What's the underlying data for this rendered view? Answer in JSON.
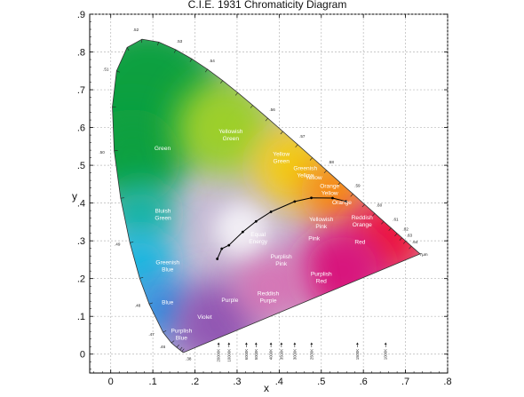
{
  "chart_data": {
    "type": "scatter",
    "title": "C.I.E. 1931 Chromaticity Diagram",
    "xlabel": "x",
    "ylabel": "y",
    "xlim": [
      -0.05,
      0.8
    ],
    "ylim": [
      -0.05,
      0.9
    ],
    "grid": true,
    "x_ticks": [
      0,
      0.1,
      0.2,
      0.3,
      0.4,
      0.5,
      0.6,
      0.7,
      0.8
    ],
    "x_tick_labels": [
      "0",
      ".1",
      ".2",
      ".3",
      ".4",
      ".5",
      ".6",
      ".7",
      ".8"
    ],
    "y_ticks": [
      0,
      0.1,
      0.2,
      0.3,
      0.4,
      0.5,
      0.6,
      0.7,
      0.8,
      0.9
    ],
    "y_tick_labels": [
      "0",
      ".1",
      ".2",
      ".3",
      ".4",
      ".5",
      ".6",
      ".7",
      ".8",
      ".9"
    ],
    "spectral_locus": {
      "x": [
        0.1741,
        0.1738,
        0.1733,
        0.1726,
        0.1714,
        0.1689,
        0.1644,
        0.1566,
        0.144,
        0.1241,
        0.0913,
        0.0687,
        0.0454,
        0.0235,
        0.0082,
        0.0039,
        0.0139,
        0.0389,
        0.0743,
        0.1142,
        0.1547,
        0.1929,
        0.2296,
        0.2658,
        0.3016,
        0.3373,
        0.3731,
        0.4087,
        0.4441,
        0.4788,
        0.5125,
        0.5448,
        0.5752,
        0.6029,
        0.627,
        0.6482,
        0.6658,
        0.6801,
        0.6915,
        0.7006,
        0.714,
        0.7347
      ],
      "y": [
        0.005,
        0.005,
        0.0048,
        0.0048,
        0.0051,
        0.0069,
        0.0109,
        0.0177,
        0.0297,
        0.0578,
        0.1327,
        0.2007,
        0.295,
        0.4127,
        0.5384,
        0.6548,
        0.7502,
        0.812,
        0.8338,
        0.8262,
        0.8059,
        0.7816,
        0.7543,
        0.7243,
        0.6923,
        0.6589,
        0.6245,
        0.5896,
        0.5547,
        0.5202,
        0.4866,
        0.4544,
        0.4242,
        0.3965,
        0.3725,
        0.3514,
        0.334,
        0.3197,
        0.3083,
        0.2993,
        0.2859,
        0.2653
      ]
    },
    "wavelength_labels": [
      {
        "label": ".38",
        "x": 0.1741,
        "y": 0.005,
        "dx": 5,
        "dy": 9
      },
      {
        "label": ".46",
        "x": 0.144,
        "y": 0.0297,
        "dx": -10,
        "dy": 6
      },
      {
        "label": ".47",
        "x": 0.1241,
        "y": 0.0578,
        "dx": -13,
        "dy": 4
      },
      {
        "label": ".48",
        "x": 0.0913,
        "y": 0.1327,
        "dx": -13,
        "dy": 3
      },
      {
        "label": ".49",
        "x": 0.0454,
        "y": 0.295,
        "dx": -14,
        "dy": 3
      },
      {
        "label": ".50",
        "x": 0.0082,
        "y": 0.5384,
        "dx": -14,
        "dy": 3
      },
      {
        "label": ".51",
        "x": 0.0139,
        "y": 0.7502,
        "dx": -12,
        "dy": 0
      },
      {
        "label": ".52",
        "x": 0.0743,
        "y": 0.8338,
        "dx": -7,
        "dy": -9
      },
      {
        "label": ".53",
        "x": 0.1547,
        "y": 0.8059,
        "dx": 4,
        "dy": -8
      },
      {
        "label": ".54",
        "x": 0.2296,
        "y": 0.7543,
        "dx": 5,
        "dy": -8
      },
      {
        "label": ".56",
        "x": 0.3731,
        "y": 0.6245,
        "dx": 5,
        "dy": -8
      },
      {
        "label": ".57",
        "x": 0.4441,
        "y": 0.5547,
        "dx": 5,
        "dy": -8
      },
      {
        "label": ".58",
        "x": 0.5125,
        "y": 0.4866,
        "dx": 5,
        "dy": -8
      },
      {
        "label": ".59",
        "x": 0.5752,
        "y": 0.4242,
        "dx": 5,
        "dy": -8
      },
      {
        "label": ".60",
        "x": 0.627,
        "y": 0.3725,
        "dx": 5,
        "dy": -8
      },
      {
        "label": ".61",
        "x": 0.6658,
        "y": 0.334,
        "dx": 5,
        "dy": -8
      },
      {
        "label": ".62",
        "x": 0.6915,
        "y": 0.3083,
        "dx": 4,
        "dy": -8
      },
      {
        "label": ".63",
        "x": 0.7006,
        "y": 0.2993,
        "dx": 4,
        "dy": -5
      },
      {
        "label": ".64",
        "x": 0.714,
        "y": 0.2859,
        "dx": 4,
        "dy": -3
      },
      {
        "label": "7µm",
        "x": 0.7347,
        "y": 0.2653,
        "dx": 4,
        "dy": 2
      }
    ],
    "planckian_locus": {
      "x": [
        0.253,
        0.2637,
        0.2806,
        0.3135,
        0.3451,
        0.3805,
        0.4369,
        0.4764,
        0.5267,
        0.5586
      ],
      "y": [
        0.2523,
        0.2791,
        0.2883,
        0.3236,
        0.3516,
        0.3768,
        0.4041,
        0.4137,
        0.4133,
        0.4043
      ],
      "markers_x": [
        0.253,
        0.2637,
        0.2806,
        0.3135,
        0.3451,
        0.3805,
        0.4369,
        0.4764,
        0.5267,
        0.5586
      ],
      "markers_y": [
        0.2523,
        0.2791,
        0.2883,
        0.3236,
        0.3516,
        0.3768,
        0.4041,
        0.4137,
        0.4133,
        0.4043
      ]
    },
    "temperature_labels": [
      {
        "label": "20000K",
        "x": 0.2561
      },
      {
        "label": "10000K",
        "x": 0.2807
      },
      {
        "label": "6000K",
        "x": 0.3221
      },
      {
        "label": "5000K",
        "x": 0.3451
      },
      {
        "label": "4000K",
        "x": 0.3805
      },
      {
        "label": "3500K",
        "x": 0.4053
      },
      {
        "label": "3000K",
        "x": 0.4369
      },
      {
        "label": "2500K",
        "x": 0.4769
      },
      {
        "label": "1500K",
        "x": 0.5857
      },
      {
        "label": "1000K",
        "x": 0.6528
      }
    ],
    "region_labels": [
      {
        "lines": [
          "Yellowish",
          "Green"
        ],
        "x": 0.285,
        "y": 0.585
      },
      {
        "lines": [
          "Green"
        ],
        "x": 0.123,
        "y": 0.54
      },
      {
        "lines": [
          "Yellow",
          "Green"
        ],
        "x": 0.405,
        "y": 0.525
      },
      {
        "lines": [
          "Greenish",
          "Yellow"
        ],
        "x": 0.462,
        "y": 0.487
      },
      {
        "lines": [
          "Yellow"
        ],
        "x": 0.482,
        "y": 0.463
      },
      {
        "lines": [
          "Orange",
          "Yellow"
        ],
        "x": 0.52,
        "y": 0.44
      },
      {
        "lines": [
          "Orange"
        ],
        "x": 0.549,
        "y": 0.397
      },
      {
        "lines": [
          "Bluish",
          "Green"
        ],
        "x": 0.124,
        "y": 0.375
      },
      {
        "lines": [
          "Yellowish",
          "Pink"
        ],
        "x": 0.5,
        "y": 0.352
      },
      {
        "lines": [
          "Reddish",
          "Orange"
        ],
        "x": 0.597,
        "y": 0.357
      },
      {
        "lines": [
          "Equal",
          "Energy"
        ],
        "x": 0.35,
        "y": 0.312
      },
      {
        "lines": [
          "Pink"
        ],
        "x": 0.483,
        "y": 0.302
      },
      {
        "lines": [
          "Red"
        ],
        "x": 0.592,
        "y": 0.292
      },
      {
        "lines": [
          "Purplish",
          "Pink"
        ],
        "x": 0.405,
        "y": 0.253
      },
      {
        "lines": [
          "Greenish",
          "Blue"
        ],
        "x": 0.135,
        "y": 0.238
      },
      {
        "lines": [
          "Purplish",
          "Red"
        ],
        "x": 0.5,
        "y": 0.207
      },
      {
        "lines": [
          "Reddish",
          "Purple"
        ],
        "x": 0.374,
        "y": 0.156
      },
      {
        "lines": [
          "Purple"
        ],
        "x": 0.283,
        "y": 0.138
      },
      {
        "lines": [
          "Blue"
        ],
        "x": 0.135,
        "y": 0.132
      },
      {
        "lines": [
          "Violet"
        ],
        "x": 0.223,
        "y": 0.094
      },
      {
        "lines": [
          "Purplish",
          "Blue"
        ],
        "x": 0.168,
        "y": 0.057
      }
    ],
    "colors": {
      "white_point": "#ffffff",
      "green": "#11a040",
      "yellow_green": "#9ccf2a",
      "yellow": "#f2cc12",
      "orange": "#f88a0c",
      "red": "#ee1a3a",
      "magenta": "#d8197d",
      "purple": "#9258b4",
      "blue": "#2a8fe0",
      "cyan": "#12b8e0",
      "blue_green": "#12b3a0",
      "locus_line": "#000000",
      "grid": "#b8b8b8"
    }
  }
}
